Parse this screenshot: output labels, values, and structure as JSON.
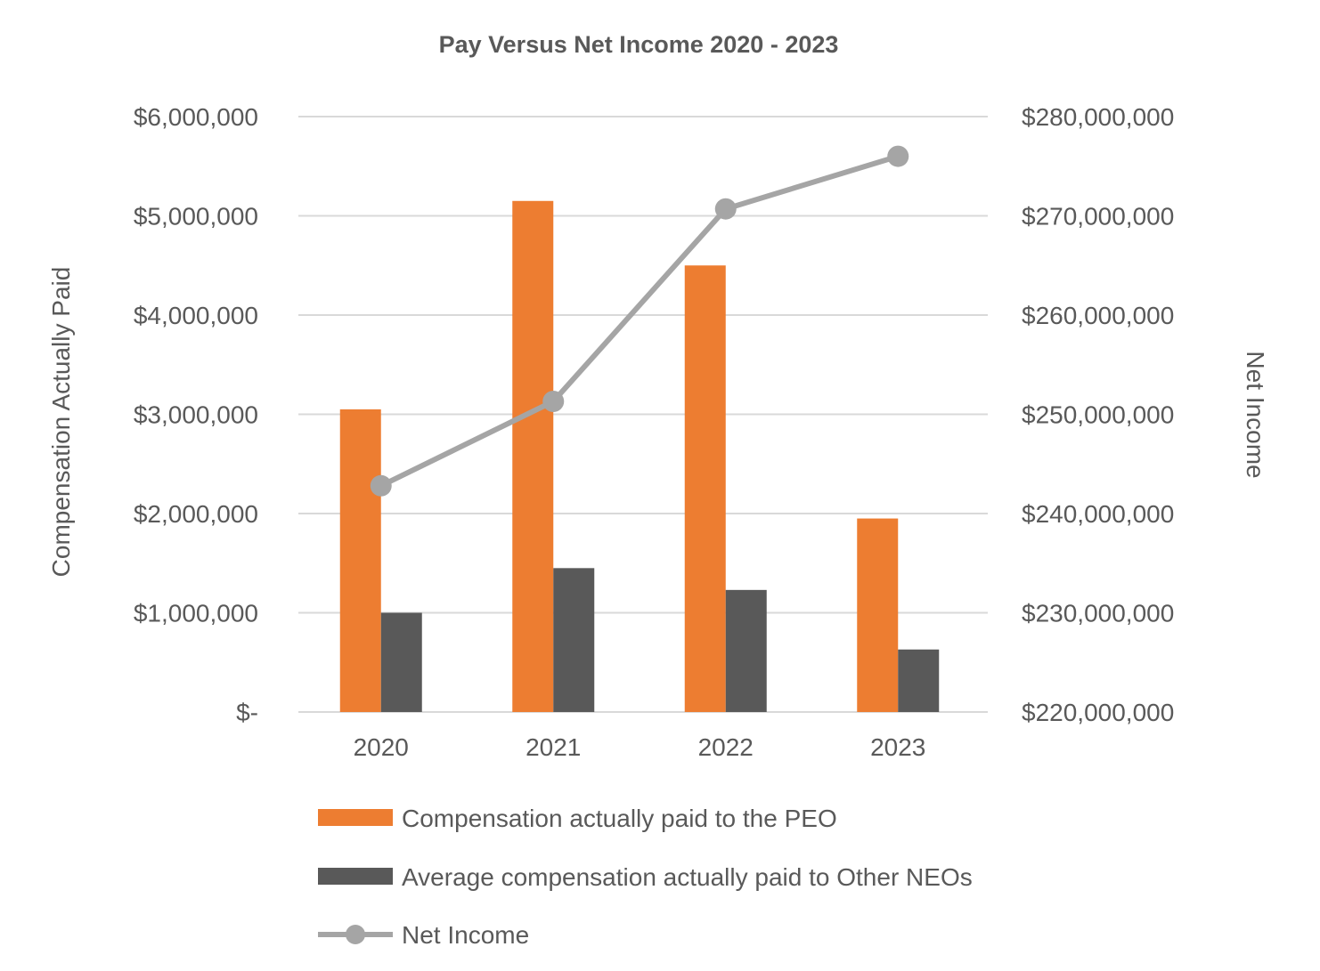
{
  "chart_data": {
    "type": "bar",
    "title": "Pay Versus Net Income 2020 - 2023",
    "categories": [
      "2020",
      "2021",
      "2022",
      "2023"
    ],
    "ylabel_left": "Compensation Actually Paid",
    "ylabel_right": "Net Income",
    "ylim_left": [
      0,
      6000000
    ],
    "ylim_right": [
      220000000,
      280000000
    ],
    "yticks_left": [
      {
        "value": 0,
        "label": "$-"
      },
      {
        "value": 1000000,
        "label": "$1,000,000"
      },
      {
        "value": 2000000,
        "label": "$2,000,000"
      },
      {
        "value": 3000000,
        "label": "$3,000,000"
      },
      {
        "value": 4000000,
        "label": "$4,000,000"
      },
      {
        "value": 5000000,
        "label": "$5,000,000"
      },
      {
        "value": 6000000,
        "label": "$6,000,000"
      }
    ],
    "yticks_right": [
      {
        "value": 220000000,
        "label": "$220,000,000"
      },
      {
        "value": 230000000,
        "label": "$230,000,000"
      },
      {
        "value": 240000000,
        "label": "$240,000,000"
      },
      {
        "value": 250000000,
        "label": "$250,000,000"
      },
      {
        "value": 260000000,
        "label": "$260,000,000"
      },
      {
        "value": 270000000,
        "label": "$270,000,000"
      },
      {
        "value": 280000000,
        "label": "$280,000,000"
      }
    ],
    "grid": true,
    "legend_position": "bottom",
    "series": [
      {
        "name": "Compensation actually paid to the PEO",
        "type": "bar",
        "axis": "left",
        "color": "#ed7d31",
        "values": [
          3050000,
          5150000,
          4500000,
          1950000
        ]
      },
      {
        "name": "Average compensation actually paid to Other NEOs",
        "type": "bar",
        "axis": "left",
        "color": "#595959",
        "values": [
          1000000,
          1450000,
          1230000,
          630000
        ]
      },
      {
        "name": "Net Income",
        "type": "line",
        "axis": "right",
        "color": "#a5a5a5",
        "values": [
          242800000,
          251300000,
          270700000,
          276000000
        ]
      }
    ]
  }
}
